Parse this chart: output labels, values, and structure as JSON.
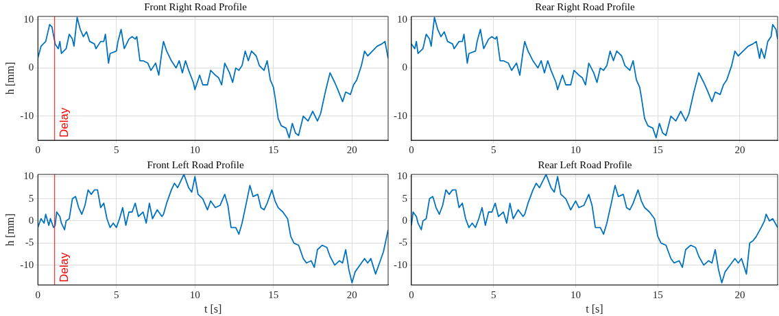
{
  "chart_data": [
    {
      "type": "line",
      "title": "Front Right Road Profile",
      "ylabel": "h [mm]",
      "xlim": [
        0,
        22.3
      ],
      "xticks": [
        0,
        5,
        10,
        15,
        20
      ],
      "ylim": [
        -15,
        10.7
      ],
      "yticks": [
        -10,
        0,
        10
      ],
      "grid": true,
      "ref_lines": [
        {
          "axis": "x",
          "value": 1.07,
          "label": "Delay",
          "color": "#ff0000"
        }
      ],
      "series": [
        {
          "color": "#0072bd",
          "x": [
            0,
            0.2,
            0.5,
            0.75,
            0.9,
            1.1,
            1.3,
            1.4,
            1.5,
            1.8,
            2.0,
            2.2,
            2.3,
            2.5,
            2.7,
            2.9,
            3.1,
            3.3,
            3.6,
            3.7,
            4.0,
            4.2,
            4.3,
            4.5,
            4.6,
            5.0,
            5.1,
            5.3,
            5.5,
            5.8,
            6.0,
            6.2,
            6.3,
            6.5,
            6.7,
            7.0,
            7.2,
            7.5,
            7.7,
            7.9,
            8.0,
            8.2,
            8.5,
            8.8,
            9.0,
            9.2,
            9.4,
            9.6,
            9.9,
            10.0,
            10.2,
            10.3,
            10.5,
            10.8,
            11.0,
            11.3,
            11.5,
            11.7,
            11.9,
            12.2,
            12.4,
            12.6,
            12.8,
            13.0,
            13.2,
            13.4,
            13.6,
            13.9,
            14.1,
            14.4,
            14.6,
            14.8,
            15.0,
            15.1,
            15.3,
            15.5,
            15.8,
            16.0,
            16.2,
            16.4,
            16.6,
            16.9,
            17.2,
            17.5,
            17.8,
            18.0,
            18.3,
            18.6,
            18.9,
            19.1,
            19.4,
            19.6,
            19.9,
            20.1,
            20.3,
            20.6,
            20.8,
            21.0,
            21.3,
            21.6,
            21.9,
            22.1,
            22.3
          ],
          "values": [
            2,
            4.5,
            5.5,
            9,
            8.5,
            5,
            4,
            5.5,
            3,
            4,
            7,
            6,
            4.5,
            10.5,
            8,
            6.5,
            7.5,
            5.5,
            5,
            4,
            5.5,
            5.5,
            7,
            1,
            3,
            3.5,
            5.5,
            8,
            4,
            6,
            6.5,
            6,
            6.5,
            1.5,
            1.5,
            1,
            -0.5,
            1,
            -1.5,
            3.5,
            5.5,
            3.5,
            1.5,
            0,
            1.5,
            -1,
            1.5,
            -0.5,
            -3,
            -4.5,
            -2.5,
            -1.5,
            -3.5,
            -3.5,
            -0.5,
            -1.5,
            -2,
            -3.5,
            1,
            -1,
            -3,
            0,
            -0.5,
            0.5,
            3.5,
            1.5,
            3.5,
            2.5,
            0.5,
            -0.5,
            1.5,
            -2.5,
            -4,
            -6,
            -10.5,
            -12,
            -12.5,
            -14.5,
            -11.5,
            -13.5,
            -14,
            -10,
            -11,
            -9,
            -11,
            -9.5,
            -5,
            -1,
            -3,
            -4.5,
            -7,
            -5,
            -5.5,
            -3.5,
            -2.5,
            0.5,
            3.5,
            2.5,
            3.5,
            4.5,
            5,
            5.5,
            2
          ]
        }
      ]
    },
    {
      "type": "line",
      "title": "Rear Right Road Profile",
      "xlim": [
        0,
        22.3
      ],
      "xticks": [
        0,
        5,
        10,
        15,
        20
      ],
      "ylim": [
        -15,
        10.7
      ],
      "yticks": [
        -10,
        0,
        10
      ],
      "grid": true,
      "series": [
        {
          "color": "#0072bd",
          "x": [
            0,
            0.2,
            0.3,
            0.4,
            0.7,
            0.9,
            1.1,
            1.2,
            1.4,
            1.6,
            1.8,
            2.0,
            2.2,
            2.5,
            2.6,
            2.9,
            3.1,
            3.2,
            3.4,
            3.5,
            3.9,
            4.0,
            4.2,
            4.4,
            4.7,
            4.9,
            5.1,
            5.2,
            5.4,
            5.6,
            5.9,
            6.1,
            6.4,
            6.6,
            6.8,
            6.9,
            7.1,
            7.4,
            7.7,
            7.9,
            8.1,
            8.3,
            8.5,
            8.8,
            8.9,
            9.1,
            9.2,
            9.4,
            9.7,
            9.9,
            10.2,
            10.4,
            10.6,
            10.8,
            11.1,
            11.3,
            11.5,
            11.7,
            11.9,
            12.1,
            12.3,
            12.5,
            12.8,
            13.0,
            13.3,
            13.5,
            13.7,
            13.9,
            14.0,
            14.2,
            14.4,
            14.7,
            14.9,
            15.1,
            15.3,
            15.5,
            15.8,
            16.1,
            16.4,
            16.7,
            16.9,
            17.2,
            17.5,
            17.8,
            18.0,
            18.3,
            18.5,
            18.8,
            19.0,
            19.2,
            19.5,
            19.7,
            19.9,
            20.2,
            20.5,
            20.8,
            21.0,
            21.2,
            21.3,
            21.5,
            21.7,
            21.9,
            22.0,
            22.2,
            22.3
          ],
          "values": [
            5,
            4,
            5.5,
            3,
            4,
            7,
            6,
            4.5,
            10.5,
            8,
            6.5,
            7.5,
            5.5,
            5,
            4,
            5.5,
            5.5,
            7,
            1,
            3,
            3.5,
            5.5,
            8,
            4,
            6,
            6.5,
            6,
            6.5,
            1.5,
            1.5,
            1,
            -0.5,
            1,
            -1.5,
            3.5,
            5.5,
            3.5,
            1.5,
            0,
            1.5,
            -1,
            1.5,
            -0.5,
            -3,
            -4.5,
            -2.5,
            -1.5,
            -3.5,
            -3.5,
            -0.5,
            -1.5,
            -2,
            -3.5,
            1,
            -1,
            -3,
            0,
            -0.5,
            0.5,
            3.5,
            1.5,
            3.5,
            2.5,
            0.5,
            -0.5,
            1.5,
            -2.5,
            -4,
            -6,
            -10.5,
            -12,
            -12.5,
            -14.5,
            -11.5,
            -13.5,
            -14,
            -10,
            -11,
            -9,
            -11,
            -9.5,
            -5,
            -1,
            -3,
            -4.5,
            -7,
            -5,
            -5.5,
            -3.5,
            -2.5,
            0.5,
            3.5,
            2.5,
            3.5,
            4.5,
            5,
            5.5,
            2,
            4,
            2,
            5.5,
            6.5,
            9,
            8,
            6
          ]
        }
      ]
    },
    {
      "type": "line",
      "title": "Front Left Road Profile",
      "xlabel": "t [s]",
      "ylabel": "h [mm]",
      "xlim": [
        0,
        22.3
      ],
      "xticks": [
        0,
        5,
        10,
        15,
        20
      ],
      "ylim": [
        -14.5,
        10.5
      ],
      "yticks": [
        -10,
        -5,
        0,
        5,
        10
      ],
      "grid": true,
      "ref_lines": [
        {
          "axis": "x",
          "value": 1.07,
          "label": "Delay",
          "color": "#ff0000"
        }
      ],
      "series": [
        {
          "color": "#0072bd",
          "x": [
            0,
            0.2,
            0.4,
            0.5,
            0.7,
            0.8,
            1.0,
            1.1,
            1.2,
            1.4,
            1.5,
            1.7,
            1.8,
            2.0,
            2.2,
            2.4,
            2.6,
            2.8,
            3.0,
            3.2,
            3.4,
            3.6,
            3.8,
            4.0,
            4.2,
            4.4,
            4.6,
            4.8,
            5.0,
            5.2,
            5.4,
            5.6,
            5.8,
            6.0,
            6.2,
            6.4,
            6.7,
            6.9,
            7.1,
            7.3,
            7.6,
            7.9,
            8.0,
            8.2,
            8.5,
            8.7,
            8.9,
            9.1,
            9.3,
            9.6,
            9.8,
            10.0,
            10.2,
            10.5,
            10.8,
            11.0,
            11.3,
            11.6,
            11.9,
            12.1,
            12.3,
            12.6,
            12.8,
            13.0,
            13.3,
            13.5,
            13.7,
            14.0,
            14.2,
            14.4,
            14.6,
            14.9,
            15.1,
            15.3,
            15.6,
            15.9,
            16.1,
            16.3,
            16.6,
            16.9,
            17.1,
            17.4,
            17.6,
            17.8,
            18.1,
            18.4,
            18.6,
            18.9,
            19.2,
            19.4,
            19.6,
            19.8,
            20.0,
            20.2,
            20.5,
            20.8,
            21.0,
            21.2,
            21.5,
            21.7,
            22.0,
            22.3
          ],
          "values": [
            -1.5,
            0.5,
            -0.5,
            1.5,
            -1,
            0.5,
            -1.5,
            -1,
            2,
            1,
            -0.5,
            -2,
            0,
            0.5,
            5,
            5.5,
            3,
            1.5,
            3.5,
            7,
            6,
            7,
            7,
            3,
            4,
            0.5,
            -1.5,
            -0.5,
            -1.5,
            0.5,
            3,
            -1,
            2,
            2,
            4,
            1,
            2,
            -0.5,
            4,
            0.5,
            2.5,
            1,
            1.5,
            4,
            7,
            8.5,
            7.5,
            9,
            10.5,
            7.5,
            6.5,
            10,
            6,
            5,
            2.5,
            4.5,
            3,
            3.5,
            6,
            3.5,
            -1.5,
            -1.5,
            -3,
            -0.5,
            4.5,
            8,
            5.5,
            6,
            3,
            2.5,
            4,
            7,
            4.5,
            3,
            2,
            0.5,
            -3.5,
            -5,
            -5.5,
            -8.5,
            -9.5,
            -9,
            -10.5,
            -6.5,
            -5.5,
            -6,
            -8,
            -10,
            -9,
            -9.5,
            -6.5,
            -11,
            -14,
            -11.5,
            -10,
            -8.5,
            -9.5,
            -8.5,
            -12,
            -10,
            -7,
            -2
          ]
        }
      ]
    },
    {
      "type": "line",
      "title": "Rear Left Road Profile",
      "xlabel": "t [s]",
      "xlim": [
        0,
        22.3
      ],
      "xticks": [
        0,
        5,
        10,
        15,
        20
      ],
      "ylim": [
        -14.5,
        10.5
      ],
      "yticks": [
        -10,
        -5,
        0,
        5,
        10
      ],
      "grid": true,
      "series": [
        {
          "color": "#0072bd",
          "x": [
            0,
            0.1,
            0.3,
            0.4,
            0.6,
            0.7,
            0.9,
            1.1,
            1.3,
            1.5,
            1.7,
            1.9,
            2.1,
            2.3,
            2.5,
            2.7,
            2.9,
            3.1,
            3.3,
            3.5,
            3.7,
            3.9,
            4.1,
            4.3,
            4.5,
            4.7,
            4.9,
            5.1,
            5.3,
            5.6,
            5.8,
            6.0,
            6.2,
            6.5,
            6.8,
            6.9,
            7.1,
            7.4,
            7.6,
            7.8,
            8.0,
            8.2,
            8.5,
            8.7,
            8.9,
            9.1,
            9.4,
            9.7,
            10.0,
            10.2,
            10.5,
            10.8,
            11.0,
            11.2,
            11.5,
            11.7,
            11.9,
            12.2,
            12.4,
            12.6,
            12.9,
            13.1,
            13.3,
            13.5,
            13.8,
            14.0,
            14.2,
            14.5,
            14.8,
            15.0,
            15.2,
            15.5,
            15.8,
            16.0,
            16.3,
            16.5,
            16.7,
            17.0,
            17.3,
            17.5,
            17.8,
            18.1,
            18.3,
            18.5,
            18.7,
            18.9,
            19.1,
            19.4,
            19.7,
            19.9,
            20.1,
            20.4,
            20.6,
            20.8,
            21.0,
            21.3,
            21.5,
            21.6,
            21.8,
            22.0,
            22.3
          ],
          "values": [
            -1,
            2,
            1,
            -0.5,
            -2,
            0,
            0.5,
            5,
            5.5,
            3,
            1.5,
            3.5,
            7,
            6,
            7,
            7,
            3,
            4,
            0.5,
            -1.5,
            -0.5,
            -1.5,
            0.5,
            3,
            -1,
            2,
            2,
            4,
            1,
            2,
            -0.5,
            4,
            0.5,
            2.5,
            1,
            1.5,
            4,
            7,
            8.5,
            7.5,
            9,
            10.5,
            7.5,
            6.5,
            10,
            6,
            5,
            2.5,
            4.5,
            3,
            3.5,
            6,
            3.5,
            -1.5,
            -1.5,
            -3,
            -0.5,
            4.5,
            8,
            5.5,
            6,
            3,
            2.5,
            4,
            7,
            4.5,
            3,
            2,
            0.5,
            -3.5,
            -5,
            -5.5,
            -8.5,
            -9.5,
            -9,
            -10.5,
            -6.5,
            -5.5,
            -6,
            -8,
            -10,
            -9,
            -9.5,
            -6.5,
            -11,
            -14,
            -11.5,
            -10,
            -8.5,
            -9.5,
            -8.5,
            -12,
            -5,
            -4.5,
            -3.5,
            -1.5,
            0,
            1.5,
            0,
            0.5,
            -1.5
          ]
        }
      ]
    }
  ]
}
